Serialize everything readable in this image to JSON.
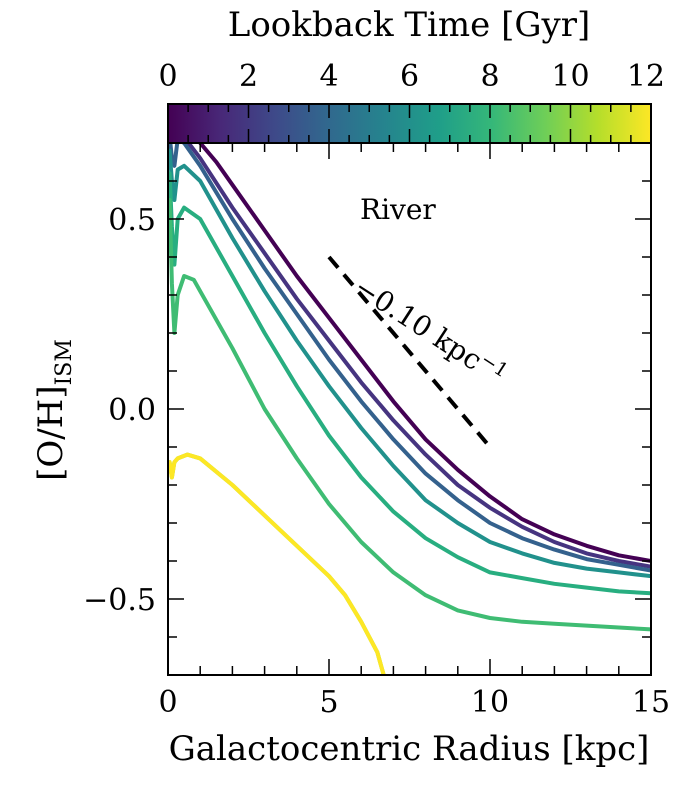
{
  "chart_data": {
    "type": "line",
    "title": "",
    "xlabel": "Galactocentric Radius [kpc]",
    "ylabel": "[O/H]",
    "ylabel_subscript": "ISM",
    "xlim": [
      0,
      15
    ],
    "ylim": [
      -0.7,
      0.7
    ],
    "x_ticks": [
      0,
      5,
      10,
      15
    ],
    "x_tick_labels": [
      "0",
      "5",
      "10",
      "15"
    ],
    "y_ticks": [
      -0.5,
      0.0,
      0.5
    ],
    "y_tick_labels": [
      "−0.5",
      "0.0",
      "0.5"
    ],
    "colorbar": {
      "label": "Lookback Time [Gyr]",
      "range": [
        0,
        12
      ],
      "ticks": [
        0,
        2,
        4,
        6,
        8,
        10,
        12
      ],
      "tick_labels": [
        "0",
        "2",
        "4",
        "6",
        "8",
        "10",
        "12"
      ],
      "colormap": "viridis",
      "colors": [
        "#440154",
        "#482878",
        "#3e4989",
        "#31688e",
        "#26828e",
        "#1f9e89",
        "#35b779",
        "#6ece58",
        "#b5de2b",
        "#fde725"
      ]
    },
    "annotations": [
      {
        "text": "River",
        "x": 7.1,
        "y": 0.52
      },
      {
        "text": "−0.10 kpc",
        "superscript": "−1",
        "x": 5.9,
        "y": 0.3,
        "rotation_deg": 33
      }
    ],
    "reference_line": {
      "label": "−0.10 kpc−1",
      "x": [
        5,
        10
      ],
      "y": [
        0.4,
        -0.1
      ],
      "style": "dashed",
      "color": "#000000"
    },
    "series": [
      {
        "lookback_gyr": 0,
        "color": "#440154",
        "x": [
          0.9,
          1.5,
          2,
          3,
          4,
          5,
          6,
          7,
          8,
          9,
          10,
          11,
          12,
          13,
          14,
          15
        ],
        "y": [
          0.71,
          0.65,
          0.59,
          0.47,
          0.35,
          0.24,
          0.13,
          0.02,
          -0.08,
          -0.16,
          -0.23,
          -0.29,
          -0.33,
          -0.36,
          -0.385,
          -0.4
        ]
      },
      {
        "lookback_gyr": 2,
        "color": "#463480",
        "x": [
          0.55,
          1,
          2,
          3,
          4,
          5,
          6,
          7,
          8,
          9,
          10,
          11,
          12,
          13,
          14,
          15
        ],
        "y": [
          0.71,
          0.66,
          0.53,
          0.41,
          0.29,
          0.18,
          0.07,
          -0.03,
          -0.12,
          -0.2,
          -0.26,
          -0.31,
          -0.35,
          -0.38,
          -0.4,
          -0.415
        ]
      },
      {
        "lookback_gyr": 3.5,
        "color": "#34618d",
        "x": [
          0.05,
          0.12,
          0.2,
          0.3,
          0.5,
          1,
          2,
          3,
          4,
          5,
          6,
          7,
          8,
          9,
          10,
          11,
          12,
          13,
          14,
          15
        ],
        "y": [
          0.72,
          0.66,
          0.64,
          0.71,
          0.7,
          0.64,
          0.5,
          0.37,
          0.25,
          0.13,
          0.02,
          -0.08,
          -0.17,
          -0.24,
          -0.3,
          -0.34,
          -0.37,
          -0.395,
          -0.41,
          -0.425
        ]
      },
      {
        "lookback_gyr": 5,
        "color": "#21918c",
        "x": [
          0.05,
          0.12,
          0.2,
          0.3,
          0.5,
          1,
          2,
          3,
          4,
          5,
          6,
          7,
          8,
          9,
          10,
          11,
          12,
          13,
          14,
          15
        ],
        "y": [
          0.68,
          0.6,
          0.55,
          0.63,
          0.64,
          0.6,
          0.45,
          0.31,
          0.18,
          0.06,
          -0.05,
          -0.15,
          -0.24,
          -0.3,
          -0.35,
          -0.38,
          -0.405,
          -0.42,
          -0.43,
          -0.44
        ]
      },
      {
        "lookback_gyr": 7,
        "color": "#28ae80",
        "x": [
          0.05,
          0.12,
          0.2,
          0.3,
          0.5,
          1,
          2,
          3,
          4,
          5,
          6,
          7,
          8,
          9,
          10,
          11,
          12,
          13,
          14,
          15
        ],
        "y": [
          0.62,
          0.48,
          0.38,
          0.5,
          0.53,
          0.5,
          0.35,
          0.2,
          0.06,
          -0.07,
          -0.18,
          -0.27,
          -0.34,
          -0.39,
          -0.43,
          -0.445,
          -0.46,
          -0.47,
          -0.48,
          -0.485
        ]
      },
      {
        "lookback_gyr": 9,
        "color": "#3fbc73",
        "x": [
          0.05,
          0.12,
          0.2,
          0.3,
          0.5,
          0.8,
          1,
          2,
          3,
          4,
          5,
          6,
          7,
          8,
          9,
          10,
          11,
          12,
          13,
          14,
          15
        ],
        "y": [
          0.55,
          0.33,
          0.2,
          0.3,
          0.35,
          0.34,
          0.31,
          0.16,
          0.0,
          -0.13,
          -0.25,
          -0.35,
          -0.43,
          -0.49,
          -0.53,
          -0.55,
          -0.56,
          -0.565,
          -0.57,
          -0.575,
          -0.58
        ]
      },
      {
        "lookback_gyr": 10.5,
        "color": "#8fd744",
        "x": [
          0.05,
          0.12,
          0.2,
          0.3,
          0.6,
          1,
          2,
          3,
          4,
          5,
          5.5,
          6,
          6.5,
          6.7
        ],
        "y": [
          -0.14,
          -0.18,
          -0.14,
          -0.13,
          -0.12,
          -0.13,
          -0.2,
          -0.28,
          -0.36,
          -0.44,
          -0.49,
          -0.56,
          -0.64,
          -0.7
        ]
      },
      {
        "lookback_gyr": 12,
        "color": "#fde725",
        "x": [
          0.05,
          0.12,
          0.2,
          0.3,
          0.6,
          1,
          2,
          3,
          4,
          5,
          5.5,
          6,
          6.5,
          6.7
        ],
        "y": [
          -0.14,
          -0.18,
          -0.14,
          -0.13,
          -0.12,
          -0.13,
          -0.2,
          -0.28,
          -0.36,
          -0.44,
          -0.49,
          -0.56,
          -0.64,
          -0.7
        ]
      }
    ]
  }
}
